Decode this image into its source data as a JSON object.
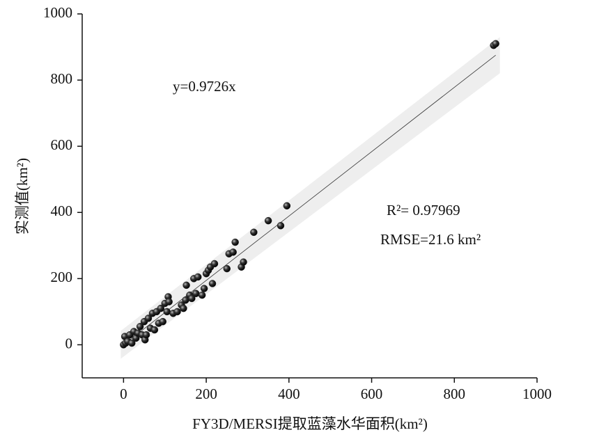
{
  "chart_data": {
    "type": "scatter",
    "x_label": "FY3D/MERSI提取蓝藻水华面积(km²)",
    "y_label": "实测值(km²)",
    "annotations": [
      "y=0.9726x",
      "R²= 0.97969",
      "RMSE=21.6 km²"
    ],
    "fit_slope": 0.9726,
    "color": "#222222",
    "x": [
      0,
      5,
      3,
      10,
      15,
      20,
      25,
      30,
      35,
      40,
      45,
      50,
      52,
      55,
      60,
      65,
      70,
      75,
      80,
      85,
      90,
      95,
      100,
      105,
      108,
      110,
      120,
      130,
      140,
      145,
      150,
      152,
      160,
      165,
      170,
      175,
      180,
      190,
      195,
      200,
      205,
      210,
      215,
      220,
      250,
      255,
      265,
      270,
      285,
      290,
      315,
      350,
      380,
      395,
      895,
      900
    ],
    "values": [
      0,
      5,
      25,
      10,
      30,
      5,
      40,
      20,
      35,
      55,
      30,
      70,
      15,
      30,
      80,
      50,
      95,
      45,
      100,
      65,
      110,
      70,
      125,
      100,
      145,
      130,
      95,
      100,
      120,
      110,
      135,
      180,
      150,
      140,
      200,
      155,
      205,
      150,
      170,
      215,
      225,
      235,
      185,
      245,
      230,
      275,
      280,
      310,
      235,
      250,
      340,
      375,
      360,
      420,
      905,
      910
    ],
    "xlim": [
      -100,
      1000
    ],
    "ylim": [
      -100,
      1000
    ],
    "xticks": [
      0,
      200,
      400,
      600,
      800,
      1000
    ],
    "yticks": [
      0,
      200,
      400,
      600,
      800,
      1000
    ]
  }
}
